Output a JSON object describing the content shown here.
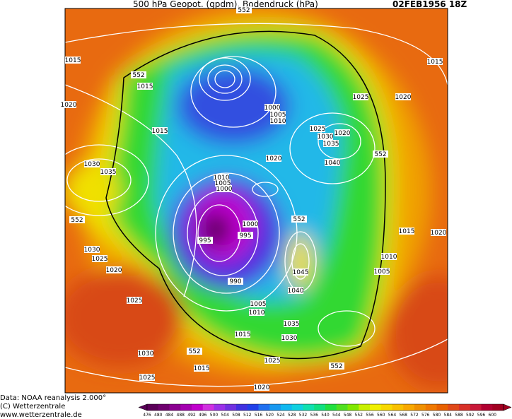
{
  "header": {
    "title": "500 hPa Geopot. (gpdm), Bodendruck (hPa)",
    "date": "02FEB1956 18Z"
  },
  "isobar_labels": [
    552,
    1015,
    1015,
    1020,
    552,
    1015,
    1015,
    1000,
    1005,
    1010,
    1025,
    1020,
    1025,
    1030,
    1020,
    1035,
    552,
    1040,
    1020,
    1030,
    1035,
    1010,
    1005,
    1000,
    552,
    552,
    1000,
    995,
    995,
    1015,
    1020,
    1030,
    1025,
    1020,
    1010,
    1005,
    1045,
    990,
    1040,
    1025,
    1005,
    1010,
    1035,
    1015,
    1030,
    1030,
    552,
    1025,
    1015,
    1025,
    552,
    1020
  ],
  "footer": {
    "source": "Data: NOAA reanalysis 2.000°",
    "copyright": "(C) Wetterzentrale",
    "url": "www.wetterzentrale.de"
  },
  "colorbar": {
    "levels": [
      476,
      480,
      484,
      488,
      492,
      496,
      500,
      504,
      508,
      512,
      516,
      520,
      524,
      528,
      532,
      536,
      540,
      544,
      548,
      552,
      556,
      560,
      564,
      568,
      572,
      576,
      580,
      584,
      588,
      592,
      596,
      600
    ],
    "colors": [
      "#5a0058",
      "#6e006e",
      "#8a0090",
      "#a400b0",
      "#c000cc",
      "#d030e0",
      "#9a30e8",
      "#7030e0",
      "#4030e0",
      "#2040e8",
      "#2070f0",
      "#1898f0",
      "#10b8f0",
      "#10d0e0",
      "#10e0b0",
      "#10e080",
      "#20e040",
      "#50e020",
      "#80e800",
      "#c8f000",
      "#f0f000",
      "#f8d800",
      "#f8c000",
      "#f8a800",
      "#f09000",
      "#f07800",
      "#e86000",
      "#e04818",
      "#d83028",
      "#c81838",
      "#b00030",
      "#a00020"
    ]
  }
}
